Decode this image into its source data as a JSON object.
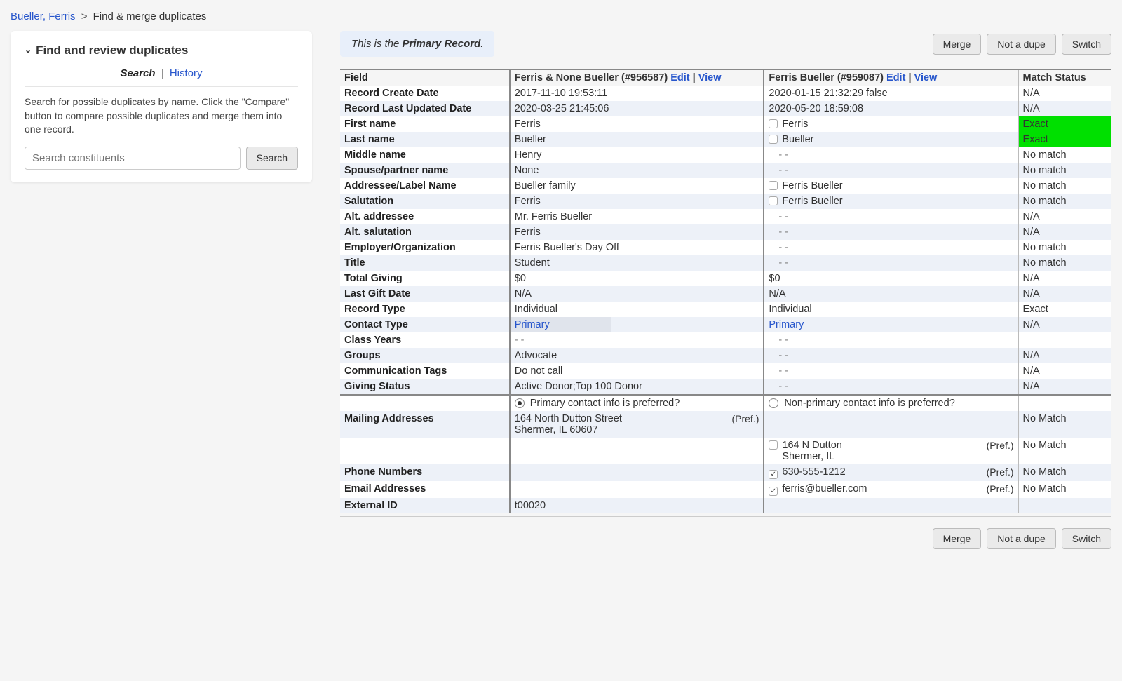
{
  "breadcrumb": {
    "link": "Bueller, Ferris",
    "current": "Find & merge duplicates"
  },
  "leftPanel": {
    "heading": "Find and review duplicates",
    "tabs": {
      "search": "Search",
      "history": "History"
    },
    "help": "Search for possible duplicates by name. Click the \"Compare\" button to compare possible duplicates and merge them into one record.",
    "placeholder": "Search constituents",
    "searchBtn": "Search"
  },
  "infoBoxPrefix": "This is the ",
  "infoBoxBold": "Primary Record",
  "infoBoxSuffix": ".",
  "buttons": {
    "merge": "Merge",
    "notDupe": "Not a dupe",
    "switch": "Switch"
  },
  "headers": {
    "field": "Field",
    "rec1": "Ferris & None Bueller (#956587)",
    "rec2": "Ferris Bueller (#959087)",
    "edit": "Edit",
    "view": "View",
    "status": "Match Status"
  },
  "radios": {
    "primary": "Primary contact info is preferred?",
    "nonprimary": "Non-primary contact info is preferred?"
  },
  "rows": [
    {
      "f": "Record Create Date",
      "a": "2017-11-10 19:53:11",
      "b": "2020-01-15 21:32:29 false",
      "s": "N/A",
      "even": false
    },
    {
      "f": "Record Last Updated Date",
      "a": "2020-03-25 21:45:06",
      "b": "2020-05-20 18:59:08",
      "s": "N/A",
      "even": true
    },
    {
      "f": "First name",
      "a": "Ferris",
      "b": "Ferris",
      "bcb": true,
      "s": "Exact",
      "exact": true,
      "even": false
    },
    {
      "f": "Last name",
      "a": "Bueller",
      "b": "Bueller",
      "bcb": true,
      "s": "Exact",
      "exact": true,
      "even": true
    },
    {
      "f": "Middle name",
      "a": "Henry",
      "b": "- -",
      "bmuted": true,
      "s": "No match",
      "even": false
    },
    {
      "f": "Spouse/partner name",
      "a": "None",
      "b": "- -",
      "bmuted": true,
      "s": "No match",
      "even": true
    },
    {
      "f": "Addressee/Label Name",
      "a": "Bueller family",
      "b": "Ferris Bueller",
      "bcb": true,
      "s": "No match",
      "even": false
    },
    {
      "f": "Salutation",
      "a": "Ferris",
      "b": "Ferris Bueller",
      "bcb": true,
      "s": "No match",
      "even": true
    },
    {
      "f": "Alt. addressee",
      "a": "Mr. Ferris Bueller",
      "b": "- -",
      "bmuted": true,
      "s": "N/A",
      "even": false
    },
    {
      "f": "Alt. salutation",
      "a": "Ferris",
      "b": "- -",
      "bmuted": true,
      "s": "N/A",
      "even": true
    },
    {
      "f": "Employer/Organization",
      "a": "Ferris Bueller's Day Off",
      "b": "- -",
      "bmuted": true,
      "s": "No match",
      "even": false
    },
    {
      "f": "Title",
      "a": "Student",
      "b": "- -",
      "bmuted": true,
      "s": "No match",
      "even": true
    },
    {
      "f": "Total Giving",
      "a": "$0",
      "b": "$0",
      "s": "N/A",
      "even": false
    },
    {
      "f": "Last Gift Date",
      "a": "N/A",
      "b": "N/A",
      "s": "N/A",
      "even": true
    },
    {
      "f": "Record Type",
      "a": "Individual",
      "b": "Individual",
      "s": "Exact",
      "even": false
    },
    {
      "f": "Contact Type",
      "a": "Primary",
      "alink": true,
      "half": true,
      "b": "Primary",
      "blink": true,
      "s": "N/A",
      "even": true
    },
    {
      "f": "Class Years",
      "a": "- -",
      "amuted": true,
      "b": "- -",
      "bmuted": true,
      "s": "",
      "even": false
    },
    {
      "f": "Groups",
      "a": "Advocate",
      "b": "- -",
      "bmuted": true,
      "s": "N/A",
      "even": true
    },
    {
      "f": "Communication Tags",
      "a": "Do not call",
      "b": "- -",
      "bmuted": true,
      "s": "N/A",
      "even": false
    },
    {
      "f": "Giving Status",
      "a": "Active Donor;Top 100 Donor",
      "b": "- -",
      "bmuted": true,
      "s": "N/A",
      "even": true
    }
  ],
  "contactRows": [
    {
      "f": "Mailing Addresses",
      "a": "164 North Dutton Street",
      "a2": "Shermer, IL 60607",
      "apref": true,
      "b": "",
      "s": "No Match",
      "even": true
    },
    {
      "f": "",
      "a": "",
      "b": "164 N Dutton",
      "b2": "Shermer, IL",
      "bcb": true,
      "bpref": true,
      "s": "No Match",
      "even": false
    },
    {
      "f": "Phone Numbers",
      "a": "",
      "b": "630-555-1212",
      "bcb": true,
      "bchecked": true,
      "bpref": true,
      "s": "No Match",
      "even": true
    },
    {
      "f": "Email Addresses",
      "a": "",
      "b": "ferris@bueller.com",
      "bcb": true,
      "bchecked": true,
      "bpref": true,
      "s": "No Match",
      "even": false
    },
    {
      "f": "External ID",
      "a": "t00020",
      "b": "",
      "s": "",
      "even": true
    }
  ],
  "prefLabel": "(Pref.)"
}
